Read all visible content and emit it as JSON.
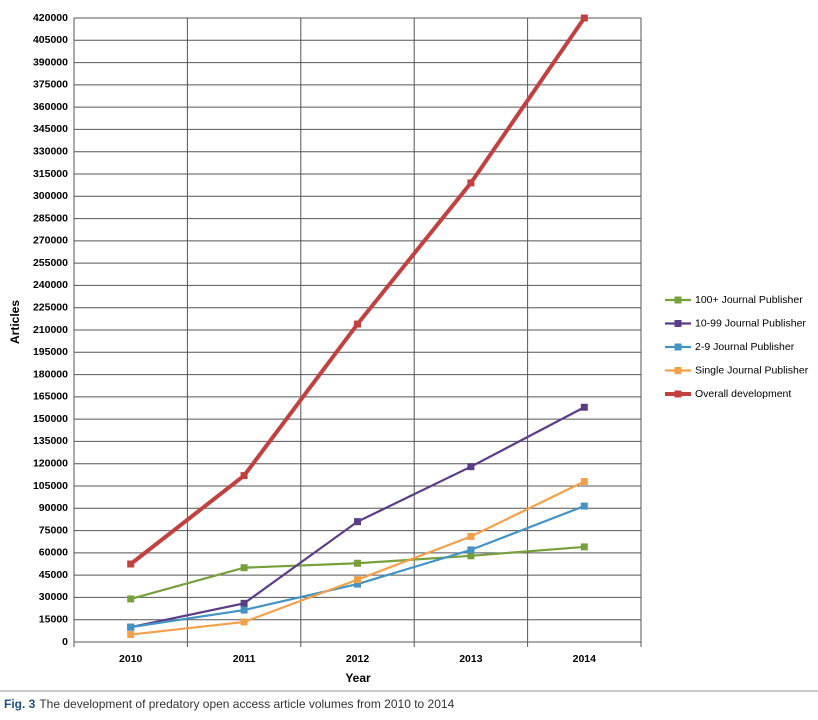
{
  "chart_data": {
    "type": "line",
    "x_label": "Year",
    "y_label": "Articles",
    "categories": [
      "2010",
      "2011",
      "2012",
      "2013",
      "2014"
    ],
    "series": [
      {
        "name": "100+ Journal  Publisher",
        "color": "#77a03c",
        "values": [
          29000,
          50000,
          53000,
          58000,
          64000
        ]
      },
      {
        "name": "10-99  Journal Publisher",
        "color": "#5b3c86",
        "values": [
          10000,
          26000,
          81000,
          118000,
          158000
        ]
      },
      {
        "name": "2-9  Journal  Publisher",
        "color": "#4393c3",
        "values": [
          10000,
          21500,
          39000,
          62000,
          91500
        ]
      },
      {
        "name": "Single Journal  Publisher",
        "color": "#f4a04a",
        "values": [
          5000,
          13500,
          42000,
          71000,
          108000
        ]
      },
      {
        "name": "Overall development",
        "color": "#c0413f",
        "values": [
          52500,
          112000,
          214000,
          309000,
          420000
        ]
      }
    ],
    "ylim": [
      0,
      420000
    ],
    "yticks": [
      0,
      15000,
      30000,
      45000,
      60000,
      75000,
      90000,
      105000,
      120000,
      135000,
      150000,
      165000,
      180000,
      195000,
      210000,
      225000,
      240000,
      255000,
      270000,
      285000,
      300000,
      315000,
      330000,
      345000,
      360000,
      375000,
      390000,
      405000,
      420000
    ],
    "grid": true,
    "legend": "right"
  },
  "caption": {
    "label": "Fig. 3",
    "text": "The development of predatory open access article volumes from 2010 to 2014"
  }
}
